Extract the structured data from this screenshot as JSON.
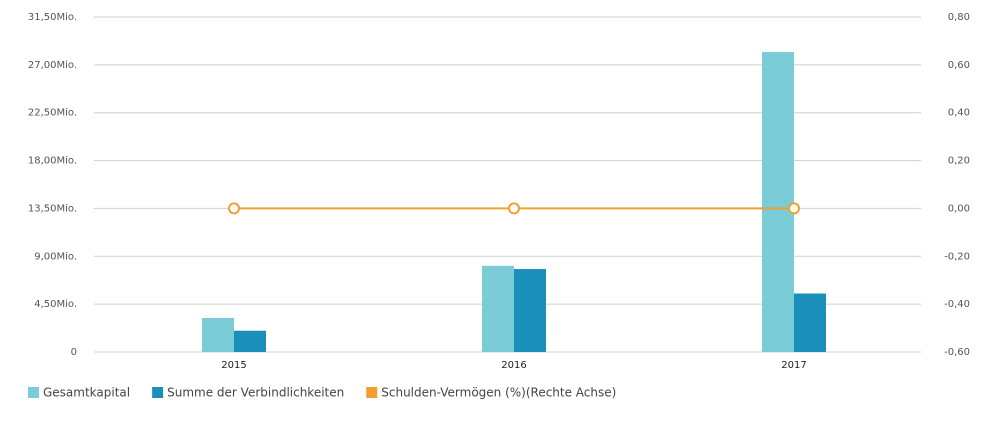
{
  "chart_data": {
    "type": "bar",
    "categories": [
      "2015",
      "2016",
      "2017"
    ],
    "series": [
      {
        "name": "Gesamtkapital",
        "color": "#7accd6",
        "values": [
          3200000,
          8100000,
          28200000
        ]
      },
      {
        "name": "Summe der Verbindlichkeiten",
        "color": "#1a8fba",
        "values": [
          2000000,
          7800000,
          5500000
        ]
      },
      {
        "name": "Schulden-Vermögen (%)(Rechte Achse)",
        "color": "#f0a030",
        "type": "line",
        "axis": "y2",
        "values": [
          0,
          0,
          0
        ]
      }
    ],
    "ylim": [
      0,
      31500000
    ],
    "yticks": [
      0,
      {
        "value": 4500000,
        "label": "4,50Mio."
      },
      {
        "value": 9000000,
        "label": "9,00Mio."
      },
      {
        "value": 13500000,
        "label": "13,50Mio."
      },
      {
        "value": 18000000,
        "label": "18,00Mio."
      },
      {
        "value": 22500000,
        "label": "22,50Mio."
      },
      {
        "value": 27000000,
        "label": "27,00Mio."
      },
      {
        "value": 31500000,
        "label": "31,50Mio."
      }
    ],
    "y2lim": [
      -0.6,
      0.8
    ],
    "y2ticks": [
      {
        "value": -0.6,
        "label": "-0,60"
      },
      {
        "value": -0.4,
        "label": "-0,40"
      },
      {
        "value": -0.2,
        "label": "-0,20"
      },
      {
        "value": 0,
        "label": "0,00"
      },
      {
        "value": 0.2,
        "label": "0,20"
      },
      {
        "value": 0.4,
        "label": "0,40"
      },
      {
        "value": 0.6,
        "label": "0,60"
      },
      {
        "value": 0.8,
        "label": "0,80"
      }
    ],
    "grid": true
  }
}
